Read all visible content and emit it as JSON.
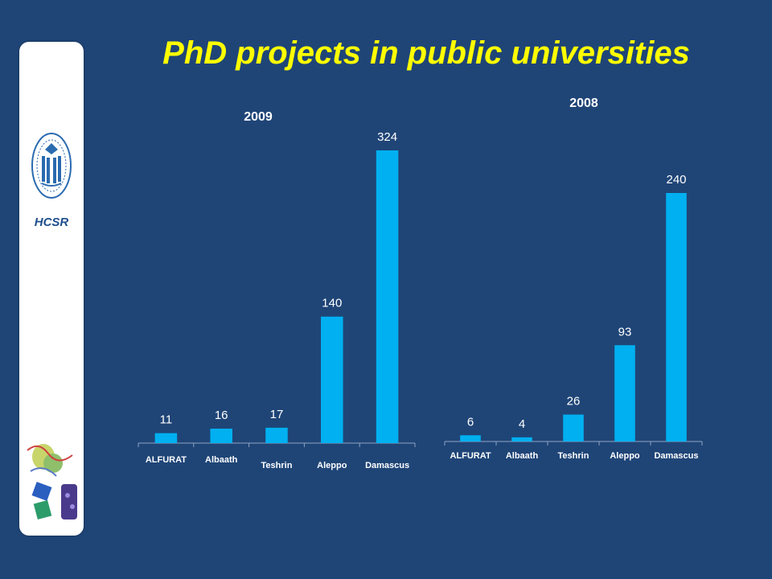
{
  "title": "PhD projects in public universities",
  "sidebar": {
    "org": "HCSR"
  },
  "colors": {
    "background": "#1f4577",
    "bar": "#00b0f0",
    "title": "#ffff00"
  },
  "chart_data": [
    {
      "type": "bar",
      "title": "2009",
      "categories": [
        "ALFURAT",
        "Albaath",
        "Teshrin",
        "Aleppo",
        "Damascus"
      ],
      "values": [
        11,
        16,
        17,
        140,
        324
      ],
      "data_labels": true,
      "grid": false,
      "legend": false
    },
    {
      "type": "bar",
      "title": "2008",
      "categories": [
        "ALFURAT",
        "Albaath",
        "Teshrin",
        "Aleppo",
        "Damascus"
      ],
      "values": [
        6,
        4,
        26,
        93,
        240
      ],
      "data_labels": true,
      "grid": false,
      "legend": false
    }
  ]
}
